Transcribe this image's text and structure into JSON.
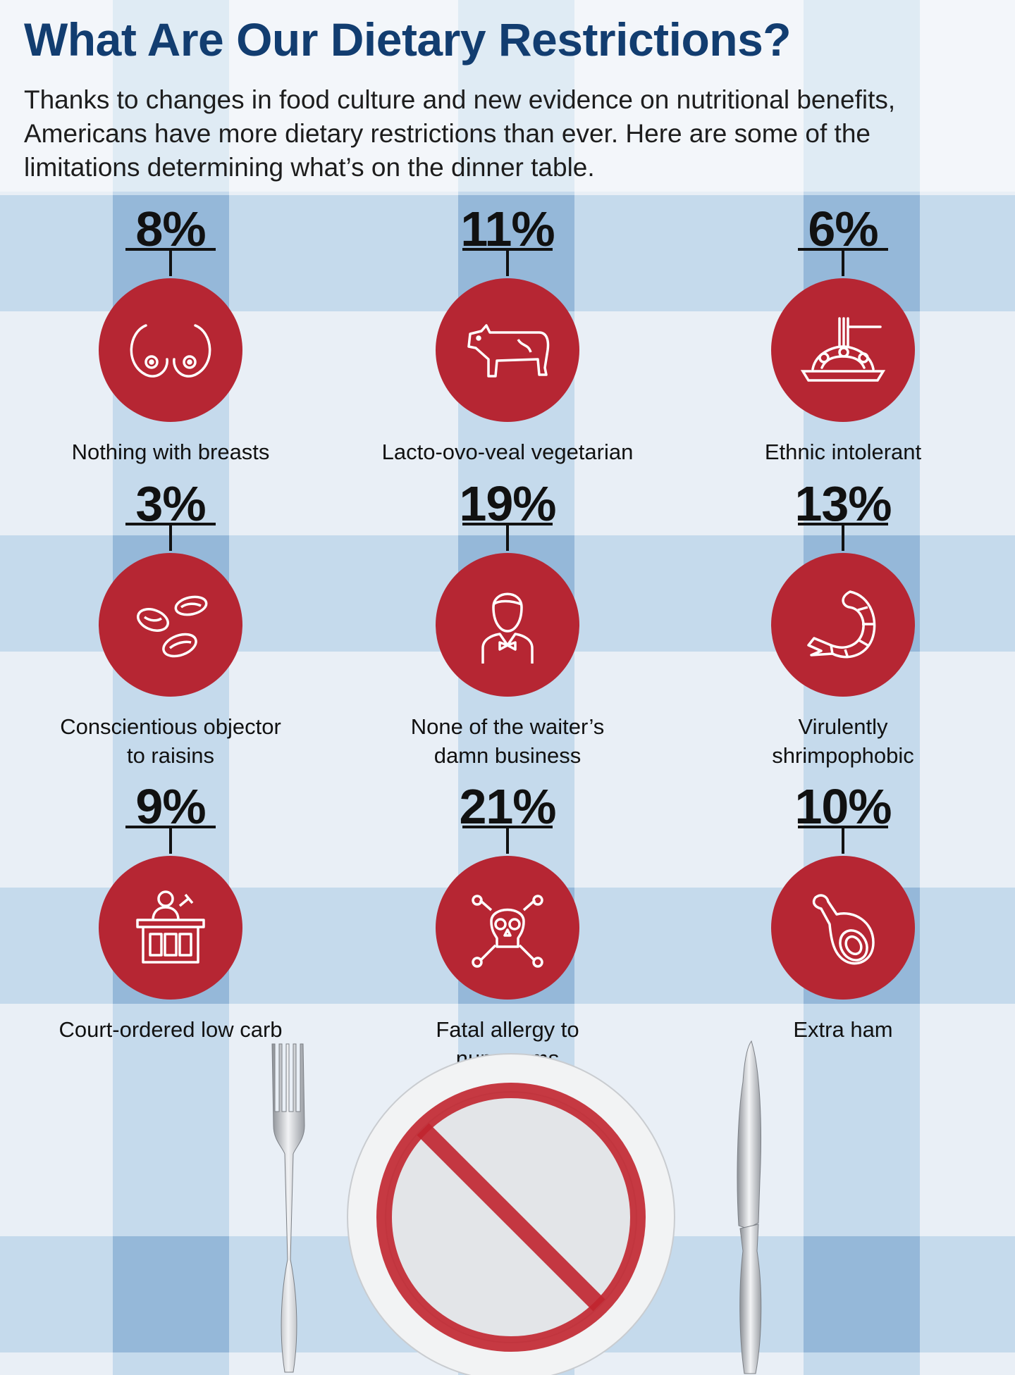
{
  "title": "What Are Our Dietary Restrictions?",
  "intro": "Thanks to changes in food culture and new evidence on nutritional benefits, Americans have more dietary restrictions than ever. Here are some of the limitations determining what’s on the dinner table.",
  "colors": {
    "title": "#123d70",
    "circle": "#b62633",
    "check_light": "#a8c8e3",
    "check_dark": "#7fa9d3",
    "background": "#e9eff6"
  },
  "restrictions": [
    {
      "percent": "8%",
      "label": "Nothing with breasts",
      "icon": "breasts-icon"
    },
    {
      "percent": "11%",
      "label": "Lacto-ovo-veal vegetarian",
      "icon": "cow-icon"
    },
    {
      "percent": "6%",
      "label": "Ethnic intolerant",
      "icon": "spaghetti-icon"
    },
    {
      "percent": "3%",
      "label_line1": "Conscientious objector",
      "label_line2": "to raisins",
      "icon": "raisins-icon"
    },
    {
      "percent": "19%",
      "label_line1": "None of the waiter’s",
      "label_line2": "damn business",
      "icon": "waiter-icon"
    },
    {
      "percent": "13%",
      "label_line1": "Virulently",
      "label_line2": "shrimpophobic",
      "icon": "shrimp-icon"
    },
    {
      "percent": "9%",
      "label": "Court-ordered low carb",
      "icon": "judge-icon"
    },
    {
      "percent": "21%",
      "label_line1": "Fatal allergy to",
      "label_line2": "num-nums",
      "icon": "skull-icon"
    },
    {
      "percent": "10%",
      "label": "Extra ham",
      "icon": "ham-icon"
    }
  ]
}
